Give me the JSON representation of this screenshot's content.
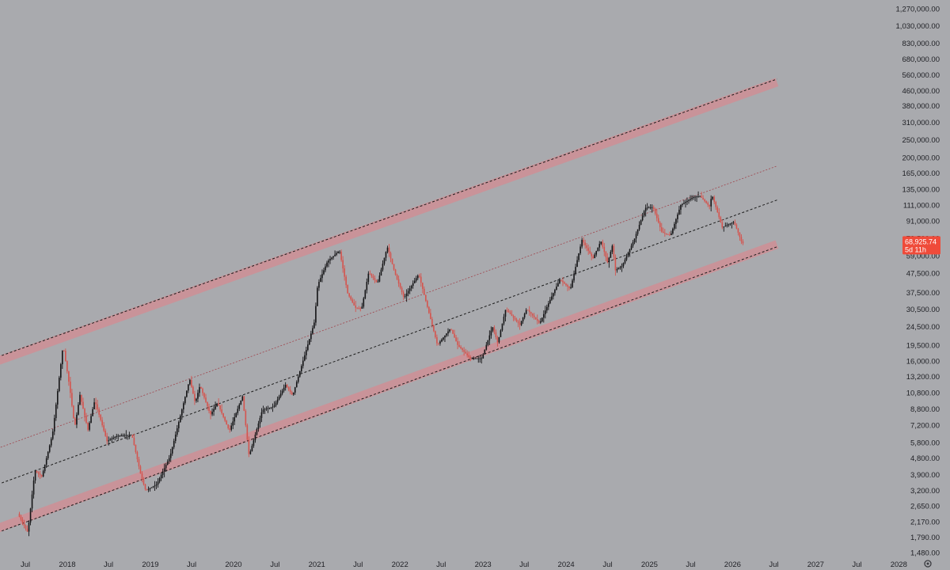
{
  "chart_data": {
    "type": "candlestick",
    "scale": "log",
    "grid": false,
    "legend": "none",
    "x_tick_labels": [
      "Jul",
      "2018",
      "Jul",
      "2019",
      "Jul",
      "2020",
      "Jul",
      "2021",
      "Jul",
      "2022",
      "Jul",
      "2023",
      "Jul",
      "2024",
      "Jul",
      "2025",
      "Jul",
      "2026",
      "Jul",
      "2027",
      "Jul",
      "2028"
    ],
    "y_tick_labels": [
      "1,270,000.00",
      "1,030,000.00",
      "830,000.00",
      "680,000.00",
      "560,000.00",
      "460,000.00",
      "380,000.00",
      "310,000.00",
      "250,000.00",
      "200,000.00",
      "165,000.00",
      "135,000.00",
      "111,000.00",
      "91,000.00",
      "73,500.00",
      "59,000.00",
      "47,500.00",
      "37,500.00",
      "30,500.00",
      "24,500.00",
      "19,500.00",
      "16,000.00",
      "13,200.00",
      "10,800.00",
      "8,800.00",
      "7,200.00",
      "5,800.00",
      "4,800.00",
      "3,900.00",
      "3,200.00",
      "2,650.00",
      "2,170.00",
      "1,790.00",
      "1,480.00"
    ],
    "y_tick_values": [
      1270000,
      1030000,
      830000,
      680000,
      560000,
      460000,
      380000,
      310000,
      250000,
      200000,
      165000,
      135000,
      111000,
      91000,
      73500,
      59000,
      47500,
      37500,
      30500,
      24500,
      19500,
      16000,
      13200,
      10800,
      8800,
      7200,
      5800,
      4800,
      3900,
      3200,
      2650,
      2170,
      1790,
      1480
    ],
    "price_anchors": [
      [
        "2017-06-01",
        2400
      ],
      [
        "2017-07-15",
        1900
      ],
      [
        "2017-08-15",
        4100
      ],
      [
        "2017-09-15",
        3800
      ],
      [
        "2017-11-01",
        6500
      ],
      [
        "2017-12-17",
        19500
      ],
      [
        "2018-01-15",
        11500
      ],
      [
        "2018-02-06",
        7000
      ],
      [
        "2018-03-01",
        10500
      ],
      [
        "2018-04-05",
        6800
      ],
      [
        "2018-05-05",
        9800
      ],
      [
        "2018-06-28",
        5900
      ],
      [
        "2018-08-10",
        6300
      ],
      [
        "2018-10-15",
        6400
      ],
      [
        "2018-11-25",
        3800
      ],
      [
        "2018-12-15",
        3200
      ],
      [
        "2019-02-01",
        3450
      ],
      [
        "2019-04-01",
        4900
      ],
      [
        "2019-06-26",
        12800
      ],
      [
        "2019-07-20",
        9500
      ],
      [
        "2019-08-10",
        11800
      ],
      [
        "2019-09-25",
        8200
      ],
      [
        "2019-10-26",
        9500
      ],
      [
        "2019-12-17",
        6700
      ],
      [
        "2020-02-13",
        10300
      ],
      [
        "2020-03-13",
        4900
      ],
      [
        "2020-05-10",
        8700
      ],
      [
        "2020-06-30",
        9100
      ],
      [
        "2020-08-20",
        11900
      ],
      [
        "2020-09-20",
        10400
      ],
      [
        "2020-11-20",
        18500
      ],
      [
        "2020-12-25",
        26000
      ],
      [
        "2021-01-08",
        41000
      ],
      [
        "2021-02-20",
        55000
      ],
      [
        "2021-04-14",
        63000
      ],
      [
        "2021-05-20",
        37000
      ],
      [
        "2021-06-22",
        31000
      ],
      [
        "2021-07-20",
        30500
      ],
      [
        "2021-08-20",
        48000
      ],
      [
        "2021-09-28",
        42000
      ],
      [
        "2021-11-10",
        66000
      ],
      [
        "2021-12-15",
        47000
      ],
      [
        "2022-01-22",
        35000
      ],
      [
        "2022-03-28",
        47000
      ],
      [
        "2022-05-12",
        29000
      ],
      [
        "2022-06-18",
        19500
      ],
      [
        "2022-08-15",
        24000
      ],
      [
        "2022-09-15",
        19500
      ],
      [
        "2022-11-09",
        16500
      ],
      [
        "2022-12-30",
        16500
      ],
      [
        "2023-02-15",
        24500
      ],
      [
        "2023-03-10",
        20000
      ],
      [
        "2023-04-14",
        30500
      ],
      [
        "2023-06-15",
        25000
      ],
      [
        "2023-07-15",
        30500
      ],
      [
        "2023-09-10",
        25500
      ],
      [
        "2023-10-25",
        34000
      ],
      [
        "2023-12-08",
        44000
      ],
      [
        "2024-01-23",
        39000
      ],
      [
        "2024-03-14",
        72000
      ],
      [
        "2024-05-01",
        57000
      ],
      [
        "2024-06-05",
        71000
      ],
      [
        "2024-07-05",
        54000
      ],
      [
        "2024-07-28",
        69000
      ],
      [
        "2024-08-05",
        49000
      ],
      [
        "2024-09-06",
        52000
      ],
      [
        "2024-10-29",
        72000
      ],
      [
        "2024-12-17",
        107000
      ],
      [
        "2025-01-20",
        108000
      ],
      [
        "2025-02-28",
        79000
      ],
      [
        "2025-04-07",
        76000
      ],
      [
        "2025-05-22",
        111000
      ],
      [
        "2025-07-14",
        122000
      ],
      [
        "2025-08-14",
        124000
      ],
      [
        "2025-09-25",
        109000
      ],
      [
        "2025-10-06",
        126000
      ],
      [
        "2025-11-20",
        84000
      ],
      [
        "2026-01-10",
        90000
      ],
      [
        "2026-02-01",
        77000
      ],
      [
        "2026-02-15",
        68925
      ]
    ],
    "channels": [
      {
        "style": "band",
        "color": "#cf8f95",
        "start": [
          "2017-03-01",
          2000
        ],
        "end": [
          "2026-07-15",
          68000
        ]
      },
      {
        "style": "band",
        "color": "#cf8f95",
        "start": [
          "2017-03-01",
          16000
        ],
        "end": [
          "2026-07-15",
          510000
        ]
      },
      {
        "style": "dashed",
        "color": "#1c1c1c",
        "start": [
          "2017-03-01",
          1900
        ],
        "end": [
          "2026-07-15",
          66000
        ]
      },
      {
        "style": "dashed",
        "color": "#1c1c1c",
        "start": [
          "2017-03-01",
          16800
        ],
        "end": [
          "2026-07-15",
          530000
        ]
      },
      {
        "style": "dashed",
        "color": "#1c1c1c",
        "start": [
          "2017-03-01",
          3450
        ],
        "end": [
          "2026-07-15",
          118000
        ]
      },
      {
        "style": "dashed-thin",
        "color": "#a0464e",
        "start": [
          "2017-03-01",
          5400
        ],
        "end": [
          "2026-07-15",
          180000
        ]
      }
    ],
    "last_price": {
      "value_label": "68,925.74",
      "countdown": "5d 11h",
      "color": "#ef4b3a"
    },
    "colors": {
      "up": "#141416",
      "down": "#d4544e",
      "background": "#a9aaae"
    }
  },
  "footer": {
    "settings_icon": "gear-icon"
  }
}
